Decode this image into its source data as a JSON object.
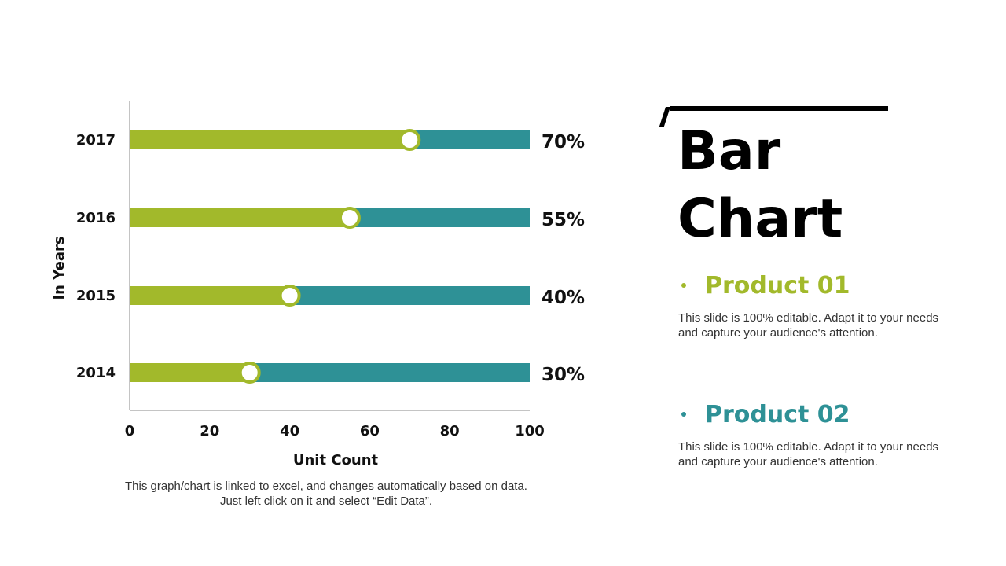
{
  "chart_data": {
    "type": "bar",
    "orientation": "horizontal",
    "categories": [
      "2017",
      "2016",
      "2015",
      "2014"
    ],
    "values": [
      70,
      55,
      40,
      30
    ],
    "data_labels": [
      "70%",
      "55%",
      "40%",
      "30%"
    ],
    "xlabel": "Unit Count",
    "ylabel": "In Years",
    "xlim": [
      0,
      100
    ],
    "x_ticks": [
      "0",
      "20",
      "40",
      "60",
      "80",
      "100"
    ],
    "grid": false,
    "colors": {
      "fill": "#a2b92b",
      "track": "#2e9196",
      "marker_fill": "#ffffff",
      "axis": "#888888"
    }
  },
  "footnote": {
    "line1": "This graph/chart is linked to excel, and changes automatically based on data.",
    "line2": "Just left click on it and select “Edit Data”."
  },
  "title": {
    "line1": "Bar",
    "line2": "Chart"
  },
  "products": [
    {
      "name": "Product 01",
      "color": "#a2b92b",
      "desc_line1": "This slide is 100% editable. Adapt it to your needs",
      "desc_line2": "and capture your audience's attention."
    },
    {
      "name": "Product 02",
      "color": "#2e9196",
      "desc_line1": "This slide is 100% editable. Adapt it to your needs",
      "desc_line2": "and capture your audience's attention."
    }
  ]
}
